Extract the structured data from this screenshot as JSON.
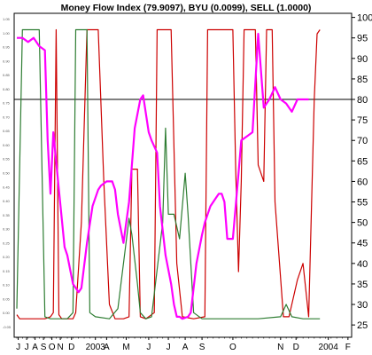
{
  "chart_data": {
    "type": "line",
    "title": "Money Flow Index (79.9097), BYU (0.0099), SELL (1.0000)",
    "ylim": [
      22,
      101
    ],
    "y_ticks": [
      25,
      30,
      35,
      40,
      45,
      50,
      55,
      60,
      65,
      70,
      75,
      80,
      85,
      90,
      95,
      100
    ],
    "x_tick_labels": [
      "J",
      "J",
      "A",
      "S",
      "O",
      "N",
      "D",
      "2003",
      "A",
      "M",
      "J",
      "J",
      "A",
      "S",
      "O",
      "N",
      "D",
      "2004",
      "F"
    ],
    "x_tick_index": [
      0.5,
      3.5,
      6.5,
      9.5,
      12.5,
      15.5,
      19.5,
      28,
      32,
      39,
      47,
      54,
      60,
      66,
      77,
      94,
      99.5,
      111,
      118
    ],
    "x_domain": [
      0,
      119
    ],
    "left_axis_labels": [
      "1.05",
      "1.00",
      "0.95",
      "0.90",
      "0.85",
      "0.80",
      "0.75",
      "0.70",
      "0.65",
      "0.60",
      "0.55",
      "0.50",
      "0.45",
      "0.40",
      "0.35",
      "0.30",
      "0.25",
      "0.20",
      "0.15",
      "0.10",
      "0.05",
      "0.00",
      "-0.05"
    ],
    "reference_line": 80,
    "series": [
      {
        "color": "#cc0000",
        "stroke_width": 1.2,
        "points": [
          [
            0,
            27.5
          ],
          [
            1,
            26.5
          ],
          [
            10,
            26.5
          ],
          [
            12,
            27
          ],
          [
            13,
            28
          ],
          [
            14,
            97
          ],
          [
            15,
            27.5
          ],
          [
            16,
            26.5
          ],
          [
            20,
            26.5
          ],
          [
            21,
            28
          ],
          [
            23,
            50
          ],
          [
            25,
            97
          ],
          [
            26,
            97
          ],
          [
            29,
            97
          ],
          [
            31,
            60
          ],
          [
            33,
            30
          ],
          [
            35,
            26.5
          ],
          [
            38,
            26.5
          ],
          [
            40,
            27
          ],
          [
            41,
            63
          ],
          [
            43,
            63
          ],
          [
            44,
            27
          ],
          [
            46,
            26.5
          ],
          [
            49,
            28
          ],
          [
            50,
            97
          ],
          [
            55,
            97
          ],
          [
            57,
            40
          ],
          [
            59,
            27
          ],
          [
            63,
            26.5
          ],
          [
            67,
            27
          ],
          [
            68,
            97
          ],
          [
            77,
            97
          ],
          [
            78,
            63
          ],
          [
            79,
            38
          ],
          [
            80,
            60
          ],
          [
            81,
            97
          ],
          [
            85,
            97
          ],
          [
            86,
            64
          ],
          [
            88,
            60
          ],
          [
            89,
            97
          ],
          [
            91,
            97
          ],
          [
            92,
            55
          ],
          [
            95,
            27
          ],
          [
            97,
            27
          ],
          [
            100,
            36
          ],
          [
            102,
            40
          ],
          [
            104,
            27
          ],
          [
            106,
            80
          ],
          [
            107,
            96
          ],
          [
            108,
            97
          ]
        ]
      },
      {
        "color": "#2e7d32",
        "stroke_width": 1.2,
        "points": [
          [
            0,
            29
          ],
          [
            2,
            97
          ],
          [
            8,
            97
          ],
          [
            10,
            27
          ],
          [
            12,
            26.5
          ],
          [
            18,
            26.5
          ],
          [
            20,
            28
          ],
          [
            21,
            97
          ],
          [
            25,
            97
          ],
          [
            26,
            28
          ],
          [
            28,
            27
          ],
          [
            33,
            26.5
          ],
          [
            36,
            29
          ],
          [
            40,
            51
          ],
          [
            41,
            47
          ],
          [
            43,
            35
          ],
          [
            44,
            28
          ],
          [
            46,
            26.5
          ],
          [
            48,
            27
          ],
          [
            52,
            50
          ],
          [
            53,
            73
          ],
          [
            54,
            52
          ],
          [
            56,
            52
          ],
          [
            58,
            46
          ],
          [
            60,
            62
          ],
          [
            61,
            52
          ],
          [
            63,
            28
          ],
          [
            66,
            26.5
          ],
          [
            75,
            26.5
          ],
          [
            86,
            26.5
          ],
          [
            94,
            27
          ],
          [
            96,
            30
          ],
          [
            98,
            27
          ],
          [
            102,
            26.5
          ],
          [
            104,
            26.5
          ],
          [
            108,
            26.5
          ]
        ]
      },
      {
        "color": "#ff00ff",
        "stroke_width": 2.2,
        "points": [
          [
            0,
            95
          ],
          [
            2,
            95
          ],
          [
            4,
            94
          ],
          [
            6,
            95
          ],
          [
            8,
            93
          ],
          [
            10,
            92
          ],
          [
            11,
            70
          ],
          [
            12,
            57
          ],
          [
            13,
            72
          ],
          [
            15,
            58
          ],
          [
            17,
            44
          ],
          [
            18,
            42
          ],
          [
            20,
            35
          ],
          [
            22,
            33
          ],
          [
            23,
            34
          ],
          [
            25,
            45
          ],
          [
            27,
            54
          ],
          [
            29,
            58
          ],
          [
            30,
            59
          ],
          [
            32,
            60
          ],
          [
            34,
            60
          ],
          [
            35,
            58
          ],
          [
            36,
            52
          ],
          [
            38,
            45
          ],
          [
            40,
            55
          ],
          [
            42,
            73
          ],
          [
            44,
            80
          ],
          [
            45,
            81
          ],
          [
            47,
            72
          ],
          [
            48,
            70
          ],
          [
            50,
            67
          ],
          [
            51,
            54
          ],
          [
            53,
            42
          ],
          [
            55,
            35
          ],
          [
            56,
            30
          ],
          [
            57,
            27
          ],
          [
            58,
            27
          ],
          [
            59,
            26.5
          ],
          [
            61,
            27
          ],
          [
            62,
            28
          ],
          [
            64,
            40
          ],
          [
            66,
            47
          ],
          [
            67,
            50
          ],
          [
            69,
            54
          ],
          [
            71,
            56
          ],
          [
            72,
            57
          ],
          [
            73,
            57
          ],
          [
            74,
            55
          ],
          [
            75,
            46
          ],
          [
            77,
            46
          ],
          [
            79,
            62
          ],
          [
            80,
            70
          ],
          [
            82,
            71
          ],
          [
            84,
            72
          ],
          [
            86,
            96
          ],
          [
            88,
            78
          ],
          [
            90,
            80
          ],
          [
            92,
            83
          ],
          [
            94,
            80
          ],
          [
            96,
            79
          ],
          [
            98,
            77
          ],
          [
            100,
            80
          ],
          [
            102,
            80
          ],
          [
            104,
            80
          ]
        ]
      }
    ]
  }
}
